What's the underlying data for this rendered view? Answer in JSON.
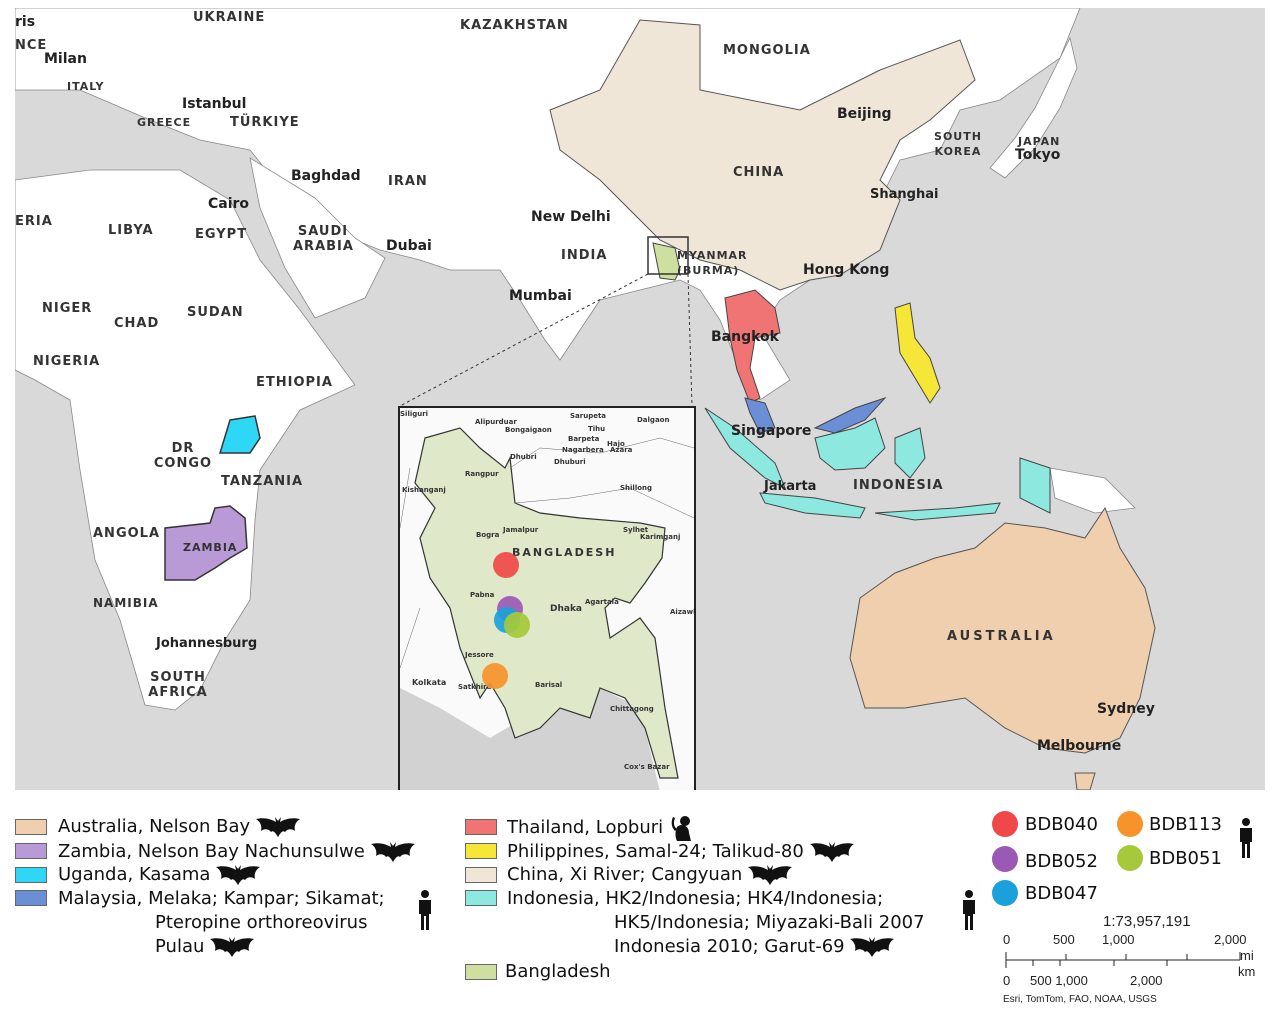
{
  "map": {
    "colors": {
      "sea": "#d9d9d9",
      "land": "#ffffff",
      "australia": "#efcfae",
      "zambia": "#b99ad6",
      "uganda": "#2ed7f5",
      "malaysia": "#6b8fd6",
      "thailand": "#f07474",
      "philippines": "#f5e637",
      "china": "#f0e6d8",
      "indonesia": "#8de8e0",
      "bangladesh": "#cfdf9f"
    },
    "countries": [
      "UKRAINE",
      "KAZAKHSTAN",
      "MONGOLIA",
      "ITALY",
      "GREECE",
      "TÜRKIYE",
      "IRAN",
      "CHINA",
      "SOUTH KOREA",
      "JAPAN",
      "LIBYA",
      "EGYPT",
      "SAUDI ARABIA",
      "INDIA",
      "MYANMAR (BURMA)",
      "NIGER",
      "CHAD",
      "SUDAN",
      "NIGERIA",
      "ETHIOPIA",
      "DR CONGO",
      "TANZANIA",
      "ANGOLA",
      "ZAMBIA",
      "NAMIBIA",
      "SOUTH AFRICA",
      "INDONESIA",
      "AUSTRALIA",
      "ERIA",
      "NCE"
    ],
    "cities": [
      "Milan",
      "Istanbul",
      "Baghdad",
      "Cairo",
      "Dubai",
      "New Delhi",
      "Mumbai",
      "Beijing",
      "Shanghai",
      "Tokyo",
      "Hong Kong",
      "Bangkok",
      "Singapore",
      "Jakarta",
      "Johannesburg",
      "Sydney",
      "Melbourne",
      "ris"
    ]
  },
  "inset": {
    "country": "BANGLADESH",
    "places": [
      "Dhaka",
      "Kolkata",
      "Chittagong",
      "Rangpur",
      "Bogra",
      "Jamalpur",
      "Sylhet",
      "Shillong",
      "Agartala",
      "Jessore",
      "Barisal",
      "Pabna",
      "Dalgaon",
      "Dhubri",
      "Dhuburi",
      "Barpeta",
      "Hajo",
      "Tihu",
      "Sarupeta",
      "Nagarbera",
      "Azara",
      "Bongaigaon",
      "Alipurduar",
      "Kishanganj",
      "Cox's Bazar",
      "Aizawl",
      "Karimganj",
      "Satkhira",
      "Siliguri"
    ],
    "points": [
      {
        "id": "BDB040",
        "color": "#f04848"
      },
      {
        "id": "BDB052",
        "color": "#9b59b6"
      },
      {
        "id": "BDB047",
        "color": "#1aa1dc"
      },
      {
        "id": "BDB051",
        "color": "#a5c93a"
      },
      {
        "id": "BDB113",
        "color": "#f7932a"
      }
    ]
  },
  "legend": {
    "left": [
      {
        "label": "Australia, Nelson Bay",
        "color": "#efcfae",
        "host": "bat-icon"
      },
      {
        "label": "Zambia, Nelson Bay Nachunsulwe",
        "color": "#b99ad6",
        "host": "bat-icon"
      },
      {
        "label": "Uganda, Kasama",
        "color": "#2ed7f5",
        "host": "bat-icon"
      },
      {
        "label": "Malaysia, Melaka; Kampar; Sikamat;",
        "line2": "Pteropine orthoreovirus",
        "line3": "Pulau",
        "color": "#6b8fd6",
        "host": "human-icon"
      }
    ],
    "middle": [
      {
        "label": "Thailand, Lopburi",
        "color": "#f07474",
        "host": "monkey-icon"
      },
      {
        "label": "Philippines, Samal-24; Talikud-80",
        "color": "#f5e637",
        "host": "bat-icon"
      },
      {
        "label": "China, Xi River; Cangyuan",
        "color": "#f0e6d8",
        "host": "bat-icon"
      },
      {
        "label": "Indonesia, HK2/Indonesia; HK4/Indonesia;",
        "line2": "HK5/Indonesia; Miyazaki-Bali 2007",
        "line3": "Indonesia 2010; Garut-69",
        "color": "#8de8e0",
        "host": "human-icon"
      },
      {
        "label": "Bangladesh",
        "color": "#cfdf9f"
      }
    ],
    "points": [
      {
        "label": "BDB040",
        "color": "#f04848"
      },
      {
        "label": "BDB113",
        "color": "#f7932a"
      },
      {
        "label": "BDB052",
        "color": "#9b59b6"
      },
      {
        "label": "BDB051",
        "color": "#a5c93a"
      },
      {
        "label": "BDB047",
        "color": "#1aa1dc"
      }
    ],
    "points_host": "human-icon"
  },
  "scale": {
    "ratio": "1:73,957,191",
    "mi_ticks": [
      "0",
      "500",
      "1,000",
      "2,000"
    ],
    "mi_unit": "mi",
    "km_ticks": [
      "0",
      "500 1,000",
      "2,000"
    ],
    "km_unit": "km",
    "attribution": "Esri, TomTom, FAO, NOAA, USGS"
  }
}
